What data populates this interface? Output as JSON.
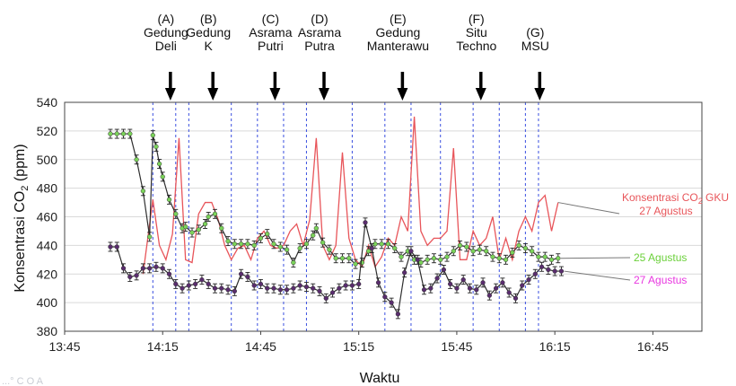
{
  "chart_data": {
    "type": "line",
    "xlabel": "Waktu",
    "ylabel_main": "Konsentrasi CO",
    "ylabel_sub": "2",
    "ylabel_unit": " (ppm)",
    "x_ticks": [
      "13:45",
      "14:15",
      "14:45",
      "15:15",
      "15:45",
      "16:15",
      "16:45"
    ],
    "x_tick_values": [
      825,
      855,
      885,
      915,
      945,
      975,
      1005
    ],
    "xlim": [
      825,
      1020
    ],
    "y_ticks": [
      380,
      400,
      420,
      440,
      460,
      480,
      500,
      520,
      540
    ],
    "ylim": [
      380,
      540
    ],
    "grid": "horizontal",
    "site_boundaries_minutes": [
      852,
      859,
      863,
      876,
      884,
      892,
      899,
      913,
      923,
      931,
      940,
      950,
      958,
      966,
      970
    ],
    "sites": [
      {
        "code": "(A)",
        "lines": [
          "Gedung",
          "Deli"
        ],
        "x": 856
      },
      {
        "code": "(B)",
        "lines": [
          "Gedung",
          "K"
        ],
        "x": 869
      },
      {
        "code": "(C)",
        "lines": [
          "Asrama",
          "Putri"
        ],
        "x": 888
      },
      {
        "code": "(D)",
        "lines": [
          "Asrama",
          "Putra"
        ],
        "x": 903
      },
      {
        "code": "(E)",
        "lines": [
          "Gedung",
          "Manterawu"
        ],
        "x": 927
      },
      {
        "code": "(F)",
        "lines": [
          "Situ",
          "Techno"
        ],
        "x": 951
      },
      {
        "code": "(G)",
        "lines": [
          "MSU"
        ],
        "x": 969
      }
    ],
    "series": [
      {
        "name": "25 Agustus",
        "color": "#2e2e2e",
        "marker_color": "#7bd35a",
        "label_color": "#6bd03a",
        "x": [
          839,
          841,
          843,
          845,
          847,
          849,
          851,
          852,
          853,
          854,
          855,
          857,
          859,
          861,
          862,
          864,
          866,
          868,
          869,
          871,
          873,
          875,
          877,
          879,
          881,
          883,
          885,
          887,
          889,
          891,
          893,
          895,
          897,
          899,
          901,
          902,
          904,
          906,
          908,
          910,
          912,
          914,
          916,
          918,
          920,
          922,
          924,
          926,
          928,
          930,
          932,
          934,
          936,
          938,
          940,
          942,
          944,
          946,
          948,
          950,
          952,
          954,
          956,
          958,
          960,
          962,
          964,
          966,
          968,
          970,
          972,
          974,
          976
        ],
        "values": [
          518,
          518,
          518,
          518,
          500,
          478,
          446,
          517,
          509,
          497,
          488,
          472,
          462,
          452,
          453,
          449,
          451,
          455,
          460,
          462,
          452,
          443,
          441,
          441,
          441,
          440,
          445,
          448,
          441,
          439,
          437,
          428,
          438,
          441,
          447,
          452,
          442,
          437,
          431,
          431,
          431,
          427,
          428,
          436,
          441,
          441,
          441,
          438,
          432,
          436,
          430,
          428,
          430,
          431,
          430,
          432,
          436,
          440,
          439,
          436,
          437,
          436,
          432,
          431,
          430,
          435,
          440,
          438,
          436,
          432,
          432,
          430,
          431
        ]
      },
      {
        "name": "27 Agustus",
        "color": "#2e2e2e",
        "marker_color": "#5a2d6e",
        "label_color": "#e838e0",
        "x": [
          839,
          841,
          843,
          845,
          847,
          849,
          851,
          853,
          855,
          857,
          859,
          861,
          863,
          865,
          867,
          869,
          871,
          873,
          875,
          877,
          879,
          881,
          883,
          885,
          887,
          889,
          891,
          893,
          895,
          897,
          899,
          901,
          903,
          905,
          907,
          909,
          911,
          913,
          915,
          917,
          919,
          921,
          923,
          925,
          927,
          929,
          931,
          933,
          935,
          937,
          939,
          941,
          943,
          945,
          947,
          949,
          951,
          953,
          955,
          957,
          959,
          961,
          963,
          965,
          967,
          969,
          971,
          973,
          975,
          977
        ],
        "values": [
          439,
          439,
          424,
          418,
          419,
          424,
          424,
          425,
          424,
          420,
          413,
          410,
          412,
          413,
          416,
          413,
          410,
          410,
          409,
          408,
          420,
          418,
          412,
          413,
          410,
          410,
          409,
          409,
          410,
          412,
          411,
          410,
          408,
          403,
          407,
          410,
          412,
          412,
          413,
          456,
          438,
          414,
          404,
          400,
          392,
          421,
          436,
          430,
          409,
          410,
          417,
          423,
          413,
          410,
          416,
          410,
          409,
          414,
          405,
          410,
          414,
          407,
          403,
          412,
          416,
          420,
          425,
          423,
          422,
          422
        ]
      },
      {
        "name": "Konsentrasi CO2 GKU 27 Agustus",
        "legend_line1": "Konsentrasi CO",
        "legend_sub": "2",
        "legend_line1_tail": " GKU",
        "legend_line2": "27 Agustus",
        "color": "#e8555a",
        "x": [
          849,
          852,
          854,
          856,
          858,
          860,
          862,
          864,
          866,
          868,
          870,
          872,
          874,
          876,
          878,
          880,
          882,
          884,
          886,
          888,
          890,
          892,
          894,
          896,
          898,
          900,
          902,
          904,
          906,
          908,
          910,
          912,
          914,
          916,
          918,
          920,
          922,
          924,
          926,
          928,
          930,
          932,
          934,
          936,
          938,
          940,
          942,
          944,
          946,
          948,
          950,
          952,
          954,
          956,
          958,
          960,
          962,
          964,
          966,
          968,
          970,
          972,
          974,
          976
        ],
        "values": [
          420,
          472,
          440,
          430,
          448,
          515,
          430,
          428,
          462,
          470,
          470,
          458,
          440,
          430,
          438,
          440,
          430,
          445,
          450,
          440,
          438,
          440,
          450,
          455,
          440,
          458,
          515,
          440,
          430,
          440,
          505,
          445,
          430,
          425,
          440,
          425,
          432,
          445,
          440,
          460,
          450,
          530,
          450,
          440,
          445,
          445,
          450,
          508,
          430,
          430,
          450,
          440,
          445,
          460,
          430,
          445,
          430,
          450,
          460,
          450,
          470,
          475,
          450,
          470
        ]
      }
    ]
  },
  "footer_watermark": "...° C  O  A"
}
